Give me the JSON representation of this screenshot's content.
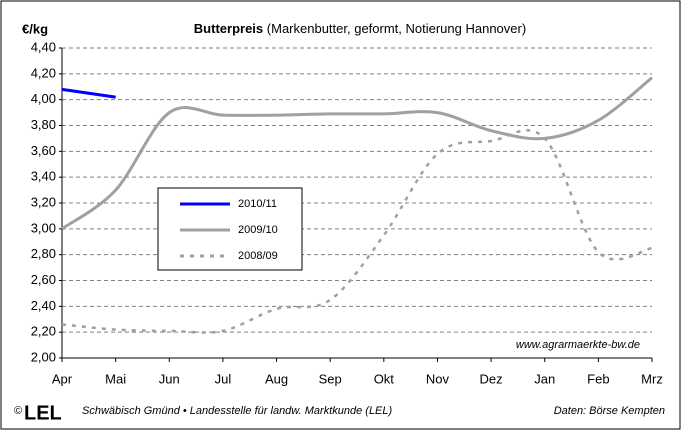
{
  "chart_data": {
    "type": "line",
    "title": "Butterpreis",
    "subtitle": "(Markenbutter, geformt, Notierung Hannover)",
    "y_label": "€/kg",
    "watermark": "www.agrarmaerkte-bw.de",
    "footer_left": "Schwäbisch Gmünd • Landesstelle für landw. Marktkunde (LEL)",
    "footer_right": "Daten: Börse Kempten",
    "logo_mark": "©",
    "logo": "LEL",
    "categories": [
      "Apr",
      "Mai",
      "Jun",
      "Jul",
      "Aug",
      "Sep",
      "Okt",
      "Nov",
      "Dez",
      "Jan",
      "Feb",
      "Mrz"
    ],
    "series": [
      {
        "name": "2010/11",
        "color": "#0000ff",
        "style": "solid",
        "values": [
          4.08,
          4.02,
          null,
          null,
          null,
          null,
          null,
          null,
          null,
          null,
          null,
          null
        ]
      },
      {
        "name": "2009/10",
        "color": "#a0a0a0",
        "style": "solid",
        "values": [
          3.0,
          3.3,
          3.9,
          3.88,
          3.88,
          3.89,
          3.89,
          3.9,
          3.76,
          3.7,
          3.84,
          4.17
        ]
      },
      {
        "name": "2008/09",
        "color": "#a0a0a0",
        "style": "dotted",
        "values": [
          2.26,
          2.22,
          2.21,
          2.21,
          2.38,
          2.45,
          2.95,
          3.58,
          3.68,
          3.7,
          2.82,
          2.85
        ]
      }
    ],
    "ylim": [
      2.0,
      4.4
    ],
    "yticks": [
      {
        "value": 2.0,
        "label": "2,00"
      },
      {
        "value": 2.2,
        "label": "2,20"
      },
      {
        "value": 2.4,
        "label": "2,40"
      },
      {
        "value": 2.6,
        "label": "2,60"
      },
      {
        "value": 2.8,
        "label": "2,80"
      },
      {
        "value": 3.0,
        "label": "3,00"
      },
      {
        "value": 3.2,
        "label": "3,20"
      },
      {
        "value": 3.4,
        "label": "3,40"
      },
      {
        "value": 3.6,
        "label": "3,60"
      },
      {
        "value": 3.8,
        "label": "3,80"
      },
      {
        "value": 4.0,
        "label": "4,00"
      },
      {
        "value": 4.2,
        "label": "4,20"
      },
      {
        "value": 4.4,
        "label": "4,40"
      }
    ],
    "grid": true
  }
}
